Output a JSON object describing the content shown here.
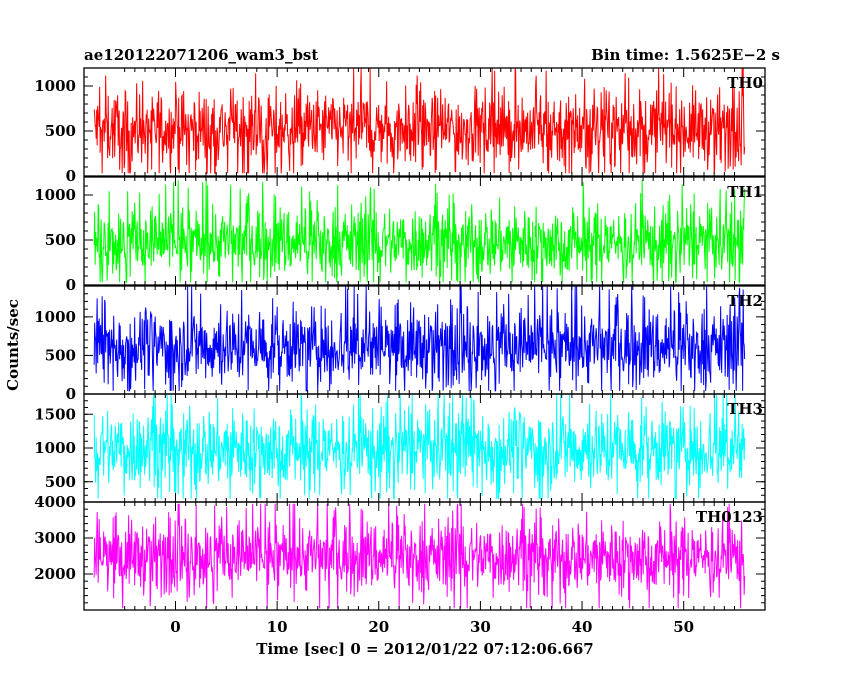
{
  "header": {
    "obs_id": "ae120122071206_wam3_bst",
    "bin_time": "Bin time: 1.5625E−2 s"
  },
  "ylabel": "Counts/sec",
  "xlabel": "Time [sec] 0 = 2012/01/22 07:12:06.667",
  "chart_data": {
    "type": "line",
    "title": "ae120122071206_wam3_bst",
    "xlabel": "Time [sec] 0 = 2012/01/22 07:12:06.667",
    "ylabel": "Counts/sec",
    "x_range": [
      -8,
      56
    ],
    "xlim": [
      -9,
      58
    ],
    "x_ticks": [
      0,
      10,
      20,
      30,
      40,
      50
    ],
    "x_tick_labels": [
      "0",
      "10",
      "20",
      "30",
      "40",
      "50"
    ],
    "bin_time_s": 0.015625,
    "panels": [
      {
        "name": "TH0",
        "color": "#ff0000",
        "ylim": [
          0,
          1200
        ],
        "y_ticks": [
          0,
          500,
          1000
        ],
        "y_tick_labels": [
          "0",
          "500",
          "1000"
        ],
        "mean": 530,
        "spread": 210,
        "min": 30,
        "max": 1200
      },
      {
        "name": "TH1",
        "color": "#00ff00",
        "ylim": [
          0,
          1200
        ],
        "y_ticks": [
          0,
          500,
          1000
        ],
        "y_tick_labels": [
          "0",
          "500",
          "1000"
        ],
        "mean": 480,
        "spread": 200,
        "min": 30,
        "max": 1200
      },
      {
        "name": "TH2",
        "color": "#0000ff",
        "ylim": [
          0,
          1400
        ],
        "y_ticks": [
          0,
          500,
          1000
        ],
        "y_tick_labels": [
          "0",
          "500",
          "1000"
        ],
        "mean": 620,
        "spread": 250,
        "min": 40,
        "max": 1400
      },
      {
        "name": "TH3",
        "color": "#00ffff",
        "ylim": [
          200,
          1800
        ],
        "y_ticks": [
          500,
          1000,
          1500
        ],
        "y_tick_labels": [
          "500",
          "1000",
          "1500"
        ],
        "mean": 1000,
        "spread": 300,
        "min": 250,
        "max": 1800
      },
      {
        "name": "TH0123",
        "color": "#ff00ff",
        "ylim": [
          1000,
          4000
        ],
        "y_ticks": [
          2000,
          3000,
          4000
        ],
        "y_tick_labels": [
          "2000",
          "3000",
          "4000"
        ],
        "mean": 2500,
        "spread": 500,
        "min": 1050,
        "max": 3950
      }
    ]
  }
}
